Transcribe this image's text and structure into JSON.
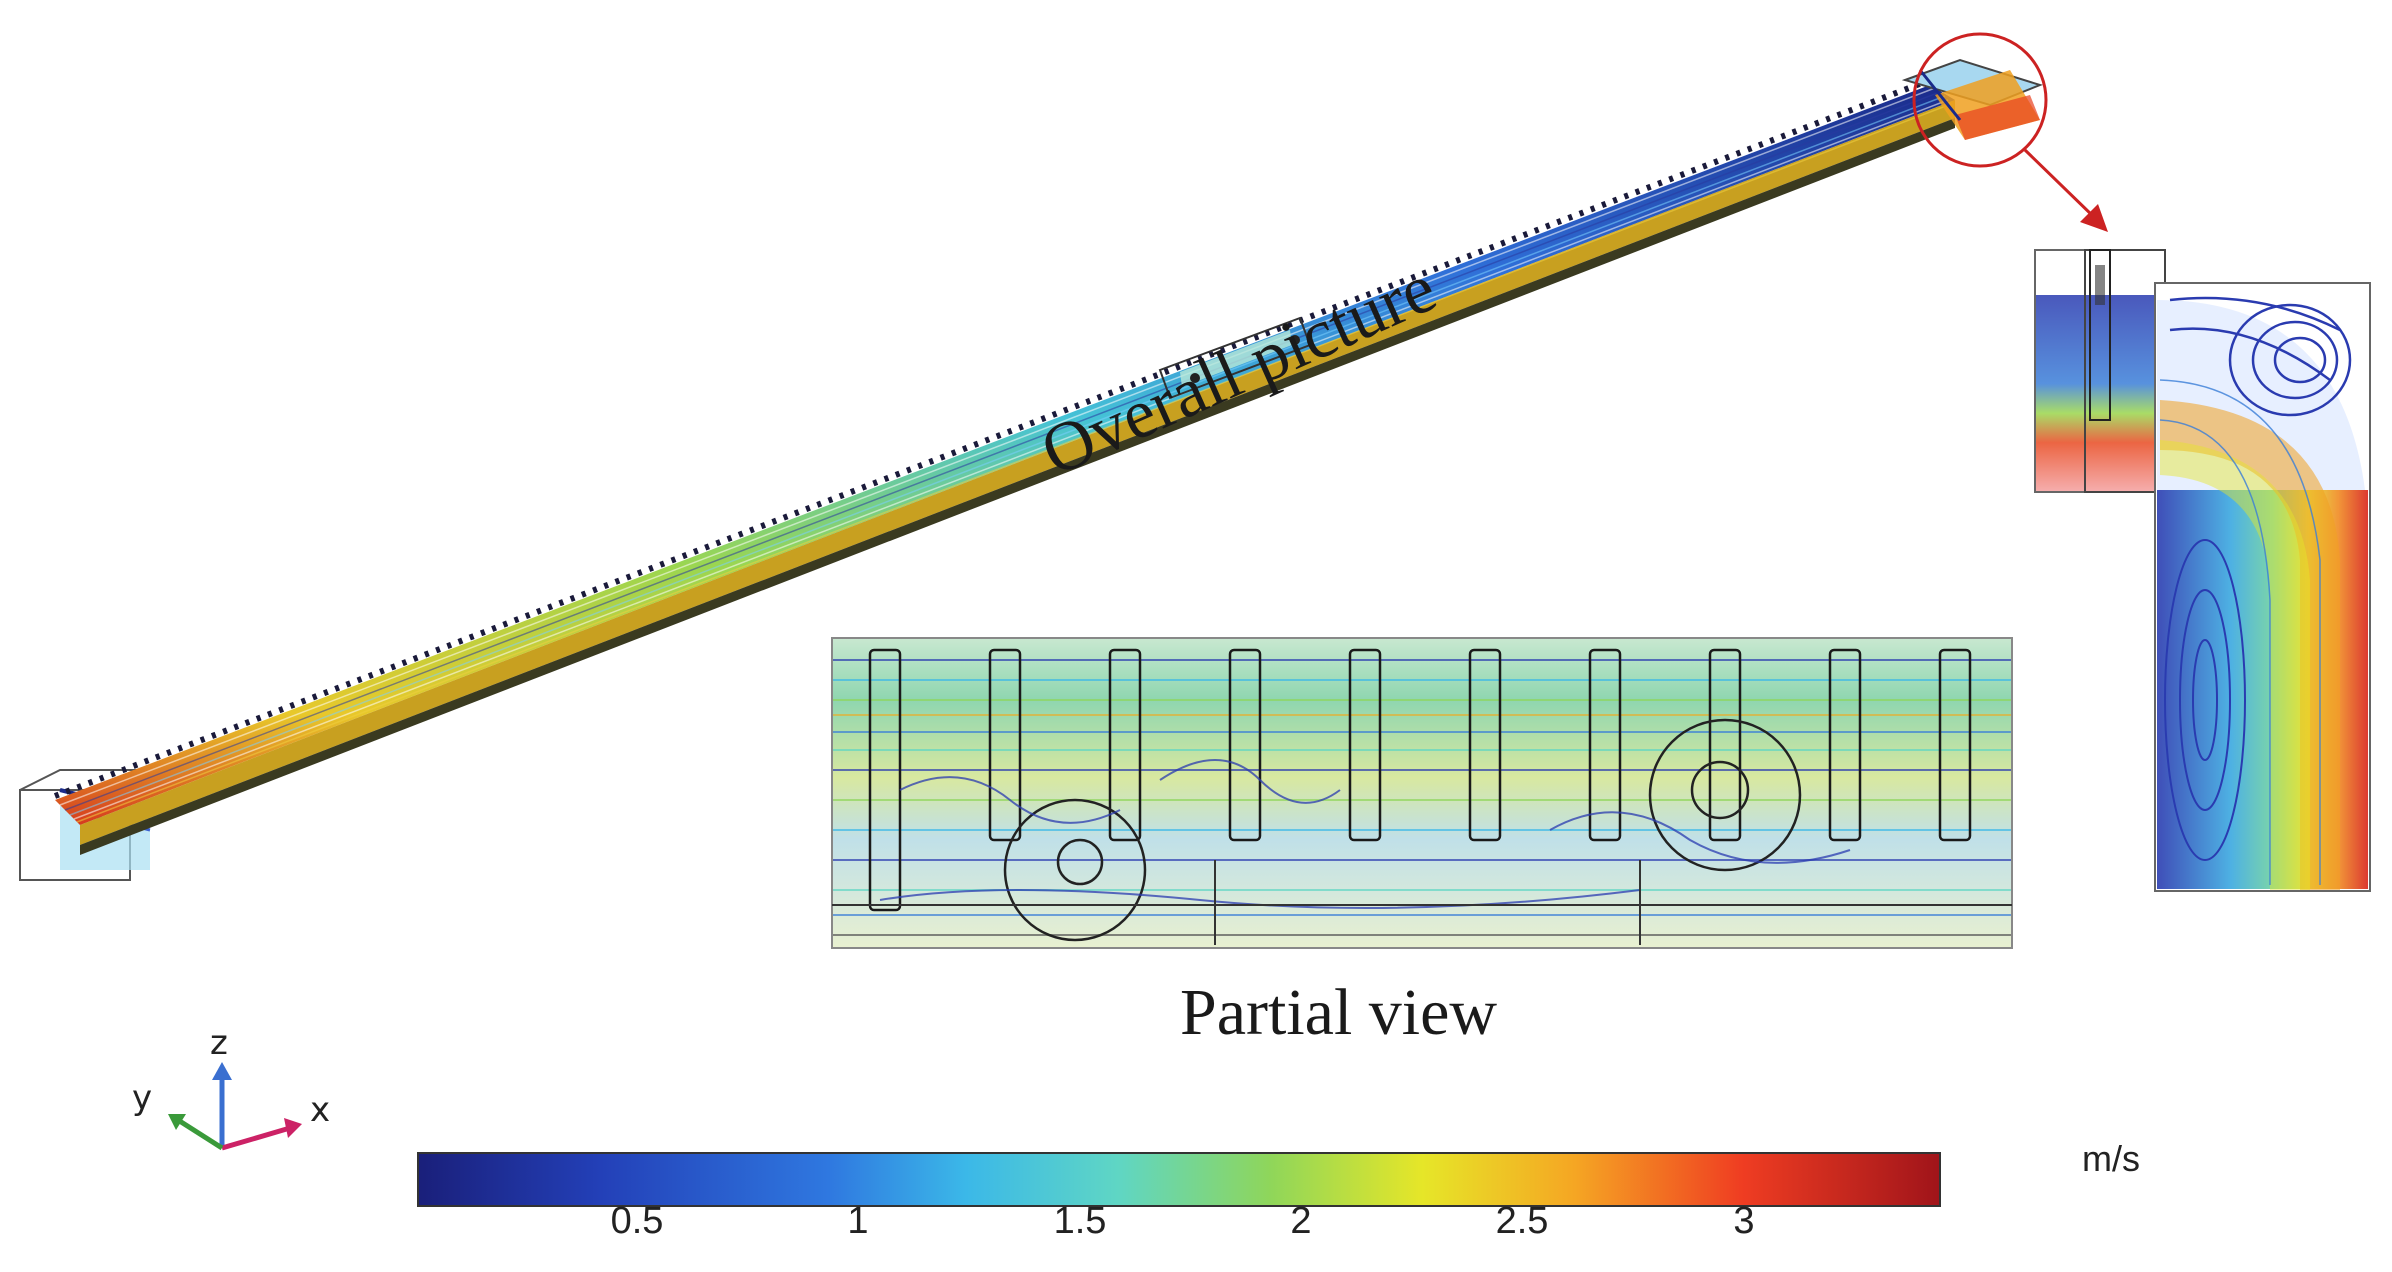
{
  "labels": {
    "overall": "Overall picture",
    "partial": "Partial view"
  },
  "colorbar": {
    "unit": "m/s",
    "ticks": [
      "0.5",
      "1",
      "1.5",
      "2",
      "2.5",
      "3"
    ],
    "tick_values": [
      0.5,
      1,
      1.5,
      2,
      2.5,
      3
    ],
    "range": [
      0,
      3.45
    ],
    "colormap": [
      "#1a1f7a",
      "#2340b8",
      "#2f78e0",
      "#3bb8e8",
      "#5fd6c4",
      "#8fd65a",
      "#e6e628",
      "#f5a623",
      "#ef3d22",
      "#a0141a"
    ]
  },
  "axes_triad": {
    "x": "x",
    "y": "y",
    "z": "z",
    "x_color": "#cc2266",
    "y_color": "#3a9a3a",
    "z_color": "#3a6fd0"
  },
  "annotation": {
    "circle_color": "#cc2222",
    "arrow_color": "#cc2222"
  }
}
